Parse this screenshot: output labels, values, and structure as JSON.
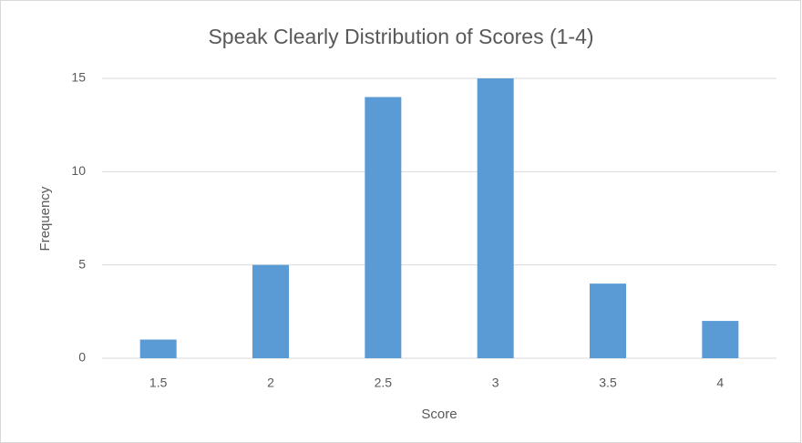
{
  "chart_data": {
    "type": "bar",
    "title": "Speak Clearly Distribution of Scores (1-4)",
    "x_label": "Score",
    "y_label": "Frequency",
    "categories": [
      "1.5",
      "2",
      "2.5",
      "3",
      "3.5",
      "4"
    ],
    "values": [
      1,
      5,
      14,
      15,
      4,
      2
    ],
    "color": "#5b9bd5",
    "ylim": [
      0,
      15
    ],
    "yticks": [
      0,
      5,
      10,
      15
    ],
    "grid": true
  }
}
